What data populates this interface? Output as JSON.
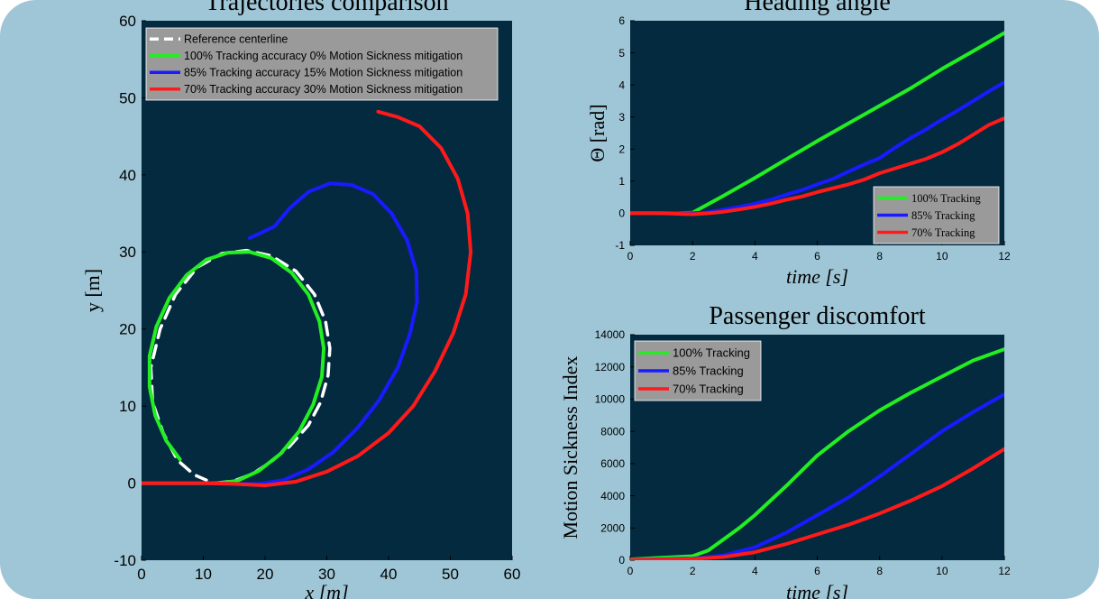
{
  "colors": {
    "background": "#9fc6d6",
    "plot_bg": "#042a40",
    "green": "#22ee22",
    "blue": "#1a1aff",
    "red": "#ff1a1a",
    "reference": "#ffffff",
    "legend_bg": "#9a9a9a"
  },
  "chart_data": [
    {
      "type": "line",
      "title": "Trajectories comparison",
      "xlabel": "x [m]",
      "ylabel": "y [m]",
      "xlim": [
        0,
        60
      ],
      "ylim": [
        -10,
        60
      ],
      "xticks": [
        0,
        10,
        20,
        30,
        40,
        50,
        60
      ],
      "yticks": [
        -10,
        0,
        10,
        20,
        30,
        40,
        50,
        60
      ],
      "legend_position": "top-left",
      "series": [
        {
          "name": "Reference centerline",
          "style": "dashed",
          "color": "#ffffff",
          "points": [
            [
              12,
              0
            ],
            [
              15,
              0.3
            ],
            [
              18,
              1.2
            ],
            [
              21,
              2.8
            ],
            [
              24,
              4.8
            ],
            [
              27,
              7.5
            ],
            [
              29,
              10.5
            ],
            [
              30.2,
              14
            ],
            [
              30.5,
              17.5
            ],
            [
              29.8,
              21
            ],
            [
              28,
              24.5
            ],
            [
              25,
              27.5
            ],
            [
              21,
              29.5
            ],
            [
              17,
              30.2
            ],
            [
              13,
              29.8
            ],
            [
              9,
              28
            ],
            [
              5.5,
              24.5
            ],
            [
              3,
              20
            ],
            [
              1.5,
              15
            ],
            [
              1.8,
              10.5
            ],
            [
              3.5,
              6.5
            ],
            [
              5.8,
              3
            ],
            [
              8.5,
              1.1
            ],
            [
              10.5,
              0.4
            ]
          ]
        },
        {
          "name": "100% Tracking accuracy 0% Motion Sickness mitigation",
          "color": "#22ee22",
          "points": [
            [
              0,
              0
            ],
            [
              8,
              0
            ],
            [
              12.5,
              0
            ],
            [
              15.5,
              0.3
            ],
            [
              19,
              1.6
            ],
            [
              22.5,
              3.8
            ],
            [
              25.5,
              6.7
            ],
            [
              27.8,
              10.2
            ],
            [
              29.2,
              13.8
            ],
            [
              29.5,
              17.5
            ],
            [
              28.8,
              21
            ],
            [
              27,
              24.5
            ],
            [
              24.3,
              27.3
            ],
            [
              21,
              29.2
            ],
            [
              17.5,
              30
            ],
            [
              14,
              29.9
            ],
            [
              10.5,
              29
            ],
            [
              7.3,
              27
            ],
            [
              4.5,
              24
            ],
            [
              2.4,
              20.3
            ],
            [
              1.3,
              16.5
            ],
            [
              1.3,
              12.5
            ],
            [
              2.2,
              8.8
            ],
            [
              4,
              5.5
            ],
            [
              6.2,
              3.1
            ]
          ]
        },
        {
          "name": "85% Tracking accuracy 15% Motion Sickness mitigation",
          "color": "#1a1aff",
          "points": [
            [
              0,
              0
            ],
            [
              10,
              0
            ],
            [
              15,
              -0.1
            ],
            [
              19,
              -0.1
            ],
            [
              23,
              0.4
            ],
            [
              27,
              1.8
            ],
            [
              31,
              4
            ],
            [
              35,
              7.2
            ],
            [
              38.5,
              10.8
            ],
            [
              41.5,
              15
            ],
            [
              43.5,
              19.5
            ],
            [
              44.6,
              23.5
            ],
            [
              44.5,
              27.5
            ],
            [
              43,
              31.5
            ],
            [
              40.5,
              35
            ],
            [
              37.5,
              37.5
            ],
            [
              34,
              38.7
            ],
            [
              30.5,
              38.9
            ],
            [
              27,
              37.8
            ],
            [
              24,
              35.7
            ],
            [
              21.5,
              33.3
            ],
            [
              17.5,
              31.8
            ]
          ]
        },
        {
          "name": "70% Tracking accuracy 30% Motion Sickness mitigation",
          "color": "#ff1a1a",
          "points": [
            [
              0,
              0
            ],
            [
              10,
              0
            ],
            [
              15,
              -0.1
            ],
            [
              20,
              -0.3
            ],
            [
              25,
              0.2
            ],
            [
              30,
              1.5
            ],
            [
              35,
              3.5
            ],
            [
              40,
              6.5
            ],
            [
              44,
              10
            ],
            [
              47.5,
              14.5
            ],
            [
              50.5,
              19.5
            ],
            [
              52.5,
              24.5
            ],
            [
              53.3,
              30
            ],
            [
              52.8,
              35
            ],
            [
              51.2,
              39.5
            ],
            [
              48.5,
              43.5
            ],
            [
              45,
              46.3
            ],
            [
              41.5,
              47.5
            ],
            [
              38.3,
              48.2
            ]
          ]
        }
      ]
    },
    {
      "type": "line",
      "title": "Heading angle",
      "xlabel": "time [s]",
      "ylabel": "Θ [rad]",
      "xlim": [
        0,
        12
      ],
      "ylim": [
        -1,
        6
      ],
      "xticks": [
        0,
        2,
        4,
        6,
        8,
        10,
        12
      ],
      "yticks": [
        -1,
        0,
        1,
        2,
        3,
        4,
        5,
        6
      ],
      "legend_position": "bottom-right",
      "series": [
        {
          "name": "100% Tracking",
          "color": "#22ee22",
          "x": [
            0,
            1,
            1.5,
            2,
            3,
            4,
            5,
            6,
            7,
            8,
            9,
            10,
            11,
            12
          ],
          "y": [
            0,
            0,
            0,
            0.02,
            0.55,
            1.1,
            1.68,
            2.25,
            2.8,
            3.35,
            3.9,
            4.5,
            5.05,
            5.62
          ]
        },
        {
          "name": "85% Tracking",
          "color": "#1a1aff",
          "x": [
            0,
            1,
            2,
            2.5,
            3,
            3.5,
            4,
            4.5,
            5,
            5.5,
            6,
            6.5,
            7,
            7.5,
            8,
            8.5,
            9,
            9.5,
            10,
            10.5,
            11,
            11.5,
            12
          ],
          "y": [
            0,
            0,
            0,
            0.03,
            0.12,
            0.2,
            0.3,
            0.42,
            0.58,
            0.72,
            0.9,
            1.07,
            1.3,
            1.52,
            1.72,
            2.05,
            2.35,
            2.62,
            2.92,
            3.2,
            3.5,
            3.8,
            4.08
          ]
        },
        {
          "name": "70% Tracking",
          "color": "#ff1a1a",
          "x": [
            0,
            1,
            2,
            2.5,
            3,
            3.5,
            4,
            4.5,
            5,
            5.5,
            6,
            6.5,
            7,
            7.5,
            8,
            8.5,
            9,
            9.5,
            10,
            10.5,
            11,
            11.5,
            12
          ],
          "y": [
            0,
            0,
            -0.03,
            0,
            0.05,
            0.12,
            0.2,
            0.3,
            0.42,
            0.52,
            0.66,
            0.78,
            0.9,
            1.05,
            1.25,
            1.4,
            1.55,
            1.7,
            1.9,
            2.15,
            2.45,
            2.75,
            2.96
          ]
        }
      ]
    },
    {
      "type": "line",
      "title": "Passenger discomfort",
      "xlabel": "time [s]",
      "ylabel": "Motion Sickness Index",
      "xlim": [
        0,
        12
      ],
      "ylim": [
        0,
        14000
      ],
      "xticks": [
        0,
        2,
        4,
        6,
        8,
        10,
        12
      ],
      "yticks": [
        0,
        2000,
        4000,
        6000,
        8000,
        10000,
        12000,
        14000
      ],
      "legend_position": "top-left",
      "series": [
        {
          "name": "100% Tracking",
          "color": "#22ee22",
          "x": [
            0,
            1,
            2,
            2.5,
            3,
            3.5,
            4,
            5,
            6,
            7,
            8,
            9,
            10,
            11,
            12
          ],
          "y": [
            50,
            150,
            250,
            600,
            1300,
            2000,
            2800,
            4600,
            6500,
            8000,
            9300,
            10400,
            11400,
            12400,
            13100
          ]
        },
        {
          "name": "85% Tracking",
          "color": "#1a1aff",
          "x": [
            0,
            1,
            2,
            3,
            4,
            5,
            6,
            7,
            8,
            9,
            10,
            11,
            12
          ],
          "y": [
            20,
            60,
            100,
            300,
            800,
            1700,
            2800,
            3900,
            5200,
            6600,
            8000,
            9200,
            10300
          ]
        },
        {
          "name": "70% Tracking",
          "color": "#ff1a1a",
          "x": [
            0,
            1,
            2,
            3,
            4,
            5,
            6,
            7,
            8,
            9,
            10,
            11,
            12
          ],
          "y": [
            10,
            40,
            80,
            200,
            500,
            1000,
            1600,
            2200,
            2900,
            3700,
            4600,
            5700,
            6900
          ]
        }
      ]
    }
  ]
}
